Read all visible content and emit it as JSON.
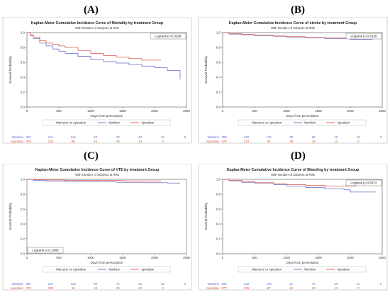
{
  "chart_data": [
    {
      "letter": "(A)",
      "type": "line",
      "title": "Kaplan-Meier Cumulative Incidence Curve of Mortality by treatment Group",
      "subtitle": "With Number of Subjects at Risk",
      "xlabel": "Days from perscription",
      "ylabel": "Survival Probability",
      "xlim": [
        0,
        2500
      ],
      "ylim": [
        0,
        1
      ],
      "xticks": [
        0,
        500,
        1000,
        1500,
        2000,
        2500
      ],
      "yticks": [
        "0.0",
        "0.2",
        "0.4",
        "0.6",
        "0.8",
        "1.0"
      ],
      "annotation": "Logrank p=0.0289",
      "annotation_position": "top-right",
      "legend_title": "Warvarin vs Apixaban",
      "legend": [
        "Warfarin",
        "Apixaban"
      ],
      "series": [
        {
          "name": "Warfarin",
          "color": "#6a6ac8",
          "x": [
            0,
            50,
            100,
            200,
            300,
            400,
            500,
            600,
            800,
            1000,
            1200,
            1400,
            1600,
            1800,
            2000,
            2200,
            2350,
            2400
          ],
          "y": [
            1.0,
            0.96,
            0.92,
            0.86,
            0.82,
            0.78,
            0.75,
            0.72,
            0.68,
            0.64,
            0.61,
            0.59,
            0.57,
            0.55,
            0.53,
            0.49,
            0.49,
            0.37
          ]
        },
        {
          "name": "Apixaban",
          "color": "#d9534a",
          "x": [
            0,
            50,
            100,
            200,
            300,
            400,
            500,
            600,
            800,
            1000,
            1200,
            1400,
            1600,
            1800,
            2100
          ],
          "y": [
            1.0,
            0.97,
            0.94,
            0.89,
            0.86,
            0.84,
            0.82,
            0.8,
            0.76,
            0.72,
            0.69,
            0.67,
            0.65,
            0.63,
            0.63
          ]
        }
      ],
      "at_risk": [
        {
          "name": "Warfarin",
          "color": "#6a6ac8",
          "counts": [
            "382",
            "241",
            "144",
            "98",
            "79",
            "50",
            "24",
            "0"
          ]
        },
        {
          "name": "Apixaban",
          "color": "#d9534a",
          "counts": [
            "379",
            "234",
            "98",
            "43",
            "20",
            "12",
            "0"
          ]
        }
      ]
    },
    {
      "letter": "(B)",
      "type": "line",
      "title": "Kaplan-Meier Cumulative Incidence Curve of stroke by treatment Group",
      "subtitle": "With Number of Subjects at Risk",
      "xlabel": "Days from perscription",
      "ylabel": "Survival Probability",
      "xlim": [
        0,
        2500
      ],
      "ylim": [
        0,
        1
      ],
      "xticks": [
        0,
        500,
        1000,
        1500,
        2000,
        2500
      ],
      "yticks": [
        "0.0",
        "0.2",
        "0.4",
        "0.6",
        "0.8",
        "1.0"
      ],
      "annotation": "Logrank p=0.6136",
      "annotation_position": "top-right",
      "legend_title": "Warvarin vs Apixaban",
      "legend": [
        "Warfarin",
        "Apixaban"
      ],
      "series": [
        {
          "name": "Warfarin",
          "color": "#6a6ac8",
          "x": [
            0,
            100,
            300,
            500,
            800,
            1000,
            1300,
            1600,
            2000,
            2350
          ],
          "y": [
            1.0,
            0.98,
            0.97,
            0.96,
            0.95,
            0.94,
            0.93,
            0.92,
            0.91,
            0.91
          ]
        },
        {
          "name": "Apixaban",
          "color": "#d9534a",
          "x": [
            0,
            100,
            300,
            500,
            800,
            1000,
            1300,
            1600,
            2100
          ],
          "y": [
            1.0,
            0.985,
            0.975,
            0.965,
            0.955,
            0.945,
            0.935,
            0.93,
            0.93
          ]
        }
      ],
      "at_risk": [
        {
          "name": "Warfarin",
          "color": "#6a6ac8",
          "counts": [
            "380",
            "229",
            "132",
            "88",
            "69",
            "48",
            "22",
            "0"
          ]
        },
        {
          "name": "Apixaban",
          "color": "#d9534a",
          "counts": [
            "378",
            "223",
            "82",
            "38",
            "18",
            "12",
            "0"
          ]
        }
      ]
    },
    {
      "letter": "(C)",
      "type": "line",
      "title": "Kaplan-Meier Cumulative Incidence Curve of VTE by treatment Group",
      "subtitle": "With Number of Subjects at Risk",
      "xlabel": "Days from perscription",
      "ylabel": "Survival Probability",
      "xlim": [
        0,
        2500
      ],
      "ylim": [
        0,
        1
      ],
      "xticks": [
        0,
        500,
        1000,
        1500,
        2000,
        2500
      ],
      "yticks": [
        "0.0",
        "0.2",
        "0.4",
        "0.6",
        "0.8",
        "1.0"
      ],
      "annotation": "Logrank p=0.1489",
      "annotation_position": "bottom-left",
      "legend_title": "Warvarin vs Apixaban",
      "legend": [
        "Warfarin",
        "Apixaban"
      ],
      "series": [
        {
          "name": "Warfarin",
          "color": "#6a6ac8",
          "x": [
            0,
            100,
            300,
            600,
            1000,
            1400,
            1800,
            2200,
            2400
          ],
          "y": [
            1.0,
            0.985,
            0.975,
            0.97,
            0.965,
            0.96,
            0.955,
            0.95,
            0.95
          ]
        },
        {
          "name": "Apixaban",
          "color": "#d9534a",
          "x": [
            0,
            100,
            300,
            600,
            1000,
            1500,
            2100
          ],
          "y": [
            1.0,
            0.995,
            0.99,
            0.985,
            0.985,
            0.98,
            0.98
          ]
        }
      ],
      "at_risk": [
        {
          "name": "Warfarin",
          "color": "#6a6ac8",
          "counts": [
            "380",
            "227",
            "135",
            "82",
            "72",
            "52",
            "23",
            "0"
          ]
        },
        {
          "name": "Apixaban",
          "color": "#d9534a",
          "counts": [
            "379",
            "230",
            "94",
            "43",
            "20",
            "12",
            "0"
          ]
        }
      ]
    },
    {
      "letter": "(D)",
      "type": "line",
      "title": "Kaplan-Meier Cumulative Incidence Curve of Bleeding by treatment Group",
      "subtitle": "With Number of Subjects at Risk",
      "xlabel": "Days from perscription",
      "ylabel": "Survival Probability",
      "xlim": [
        0,
        2500
      ],
      "ylim": [
        0,
        1
      ],
      "xticks": [
        0,
        500,
        1000,
        1500,
        2000,
        2500
      ],
      "yticks": [
        "0.0",
        "0.2",
        "0.4",
        "0.6",
        "0.8",
        "1.0"
      ],
      "annotation": "Logrank p=0.5672",
      "annotation_position": "top-right",
      "legend_title": "Warvarin vs Apixaban",
      "legend": [
        "Warfarin",
        "Apixaban"
      ],
      "series": [
        {
          "name": "Warfarin",
          "color": "#6a6ac8",
          "x": [
            0,
            100,
            300,
            500,
            800,
            1000,
            1300,
            1600,
            1900,
            2000,
            2300,
            2400
          ],
          "y": [
            1.0,
            0.98,
            0.96,
            0.95,
            0.93,
            0.91,
            0.89,
            0.87,
            0.86,
            0.83,
            0.83,
            0.83
          ]
        },
        {
          "name": "Apixaban",
          "color": "#d9534a",
          "x": [
            0,
            100,
            300,
            500,
            800,
            1000,
            1300,
            1600,
            2100
          ],
          "y": [
            1.0,
            0.985,
            0.97,
            0.955,
            0.94,
            0.93,
            0.92,
            0.91,
            0.91
          ]
        }
      ],
      "at_risk": [
        {
          "name": "Warfarin",
          "color": "#6a6ac8",
          "counts": [
            "380",
            "232",
            "136",
            "91",
            "75",
            "50",
            "21",
            "0"
          ]
        },
        {
          "name": "Apixaban",
          "color": "#d9534a",
          "counts": [
            "377",
            "225",
            "87",
            "42",
            "20",
            "12",
            "0"
          ]
        }
      ]
    }
  ]
}
